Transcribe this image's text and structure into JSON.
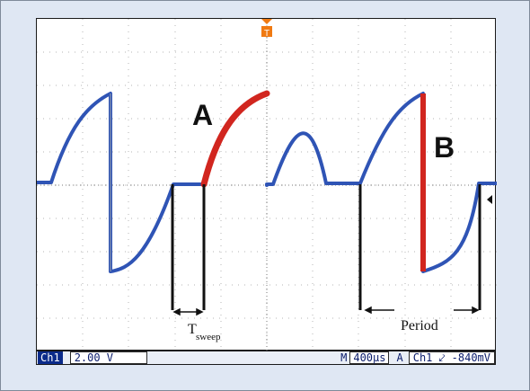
{
  "labels": {
    "a": "A",
    "b": "B",
    "t_main": "T",
    "t_sub": "sweep",
    "period": "Period"
  },
  "status_bar": {
    "channel": "Ch1",
    "volts_per_div": "2.00 V",
    "m": "M",
    "time_per_div": "400µs",
    "trigger_mode": "A",
    "trigger_channel": "Ch1",
    "trigger_slope": "⤦",
    "trigger_level": "-840mV"
  },
  "trigger_marker": "T",
  "colors": {
    "trace": "#2f54b5",
    "highlight": "#d1261f",
    "grid": "#b5b5b5",
    "markers": "#111111",
    "trigger": "#f07a12"
  }
}
